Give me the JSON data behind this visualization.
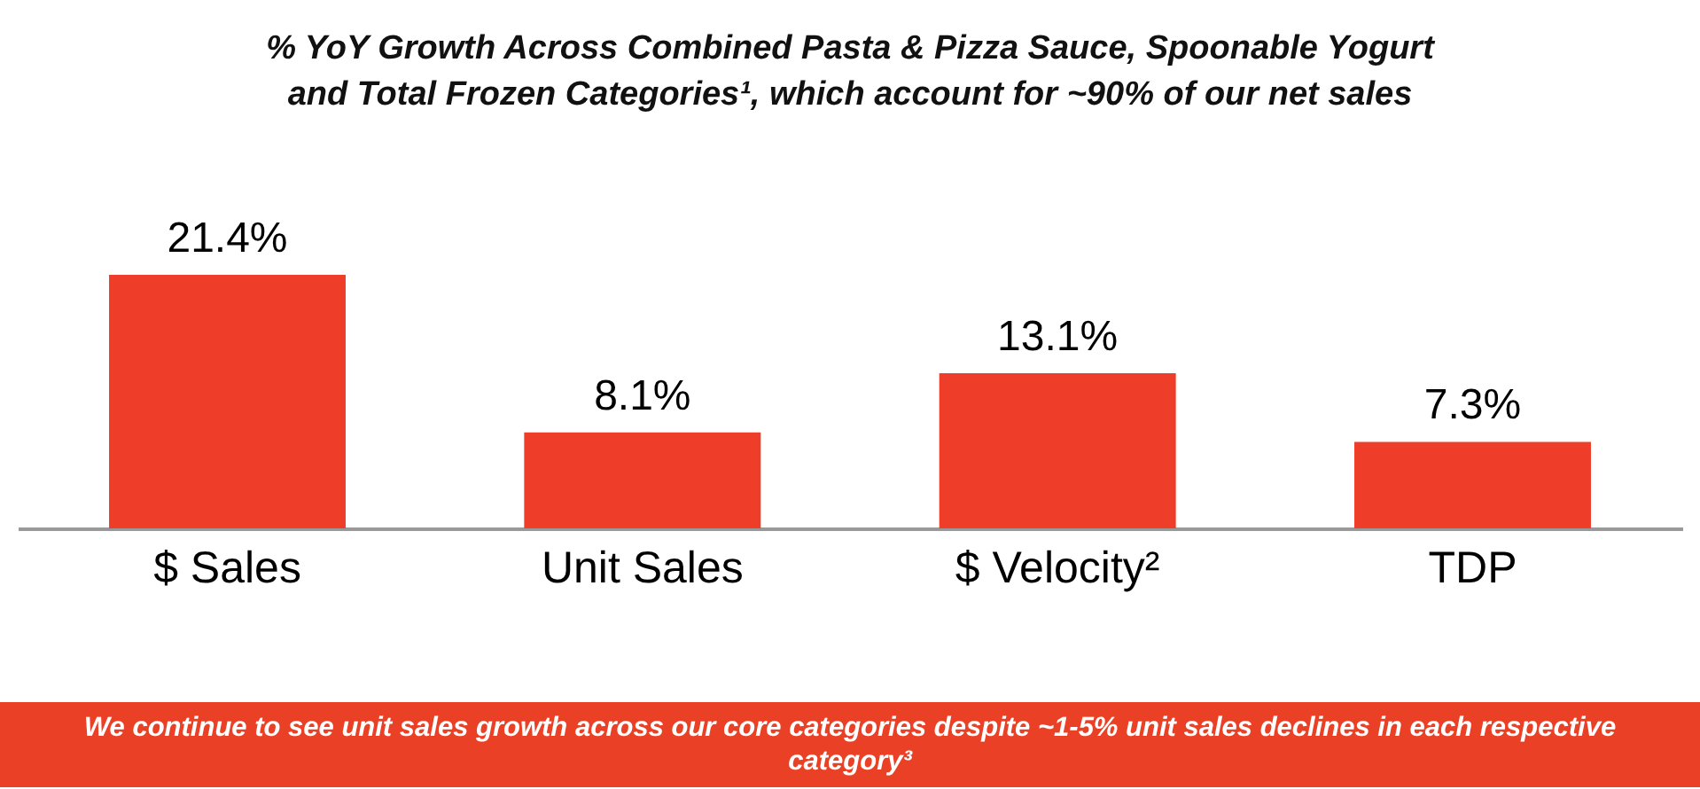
{
  "chart_data": {
    "type": "bar",
    "title": "% YoY Growth Across Combined Pasta & Pizza Sauce, Spoonable Yogurt and Total Frozen Categories¹, which account for ~90% of our net sales",
    "categories": [
      "$ Sales",
      "Unit Sales",
      "$ Velocity²",
      "TDP"
    ],
    "values": [
      21.4,
      8.1,
      13.1,
      7.3
    ],
    "value_labels": [
      "21.4%",
      "8.1%",
      "13.1%",
      "7.3%"
    ],
    "color": "#ee3d29",
    "tick_labels": "x",
    "annotations": [
      "We continue to see unit sales growth across our core categories despite ~1-5% unit sales declines in each respective category³"
    ]
  }
}
